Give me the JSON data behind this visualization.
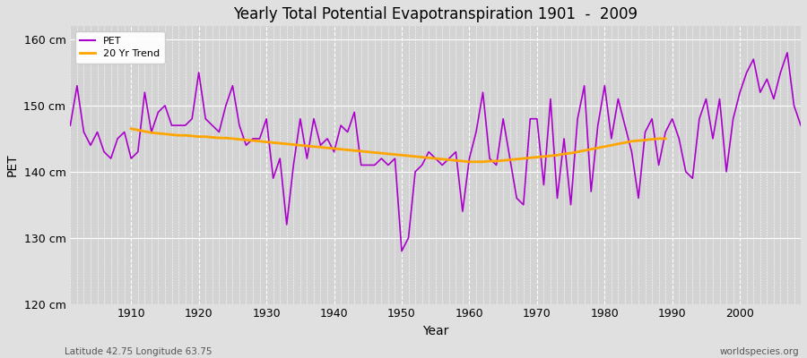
{
  "title": "Yearly Total Potential Evapotranspiration 1901  -  2009",
  "xlabel": "Year",
  "ylabel": "PET",
  "footer_left": "Latitude 42.75 Longitude 63.75",
  "footer_right": "worldspecies.org",
  "ylim": [
    120,
    162
  ],
  "yticks": [
    120,
    130,
    140,
    150,
    160
  ],
  "ytick_labels": [
    "120 cm",
    "130 cm",
    "140 cm",
    "150 cm",
    "160 cm"
  ],
  "pet_color": "#AA00CC",
  "trend_color": "#FFA500",
  "bg_color": "#E0E0E0",
  "plot_bg_color": "#D3D3D3",
  "grid_color": "#FFFFFF",
  "years": [
    1901,
    1902,
    1903,
    1904,
    1905,
    1906,
    1907,
    1908,
    1909,
    1910,
    1911,
    1912,
    1913,
    1914,
    1915,
    1916,
    1917,
    1918,
    1919,
    1920,
    1921,
    1922,
    1923,
    1924,
    1925,
    1926,
    1927,
    1928,
    1929,
    1930,
    1931,
    1932,
    1933,
    1934,
    1935,
    1936,
    1937,
    1938,
    1939,
    1940,
    1941,
    1942,
    1943,
    1944,
    1945,
    1946,
    1947,
    1948,
    1949,
    1950,
    1951,
    1952,
    1953,
    1954,
    1955,
    1956,
    1957,
    1958,
    1959,
    1960,
    1961,
    1962,
    1963,
    1964,
    1965,
    1966,
    1967,
    1968,
    1969,
    1970,
    1971,
    1972,
    1973,
    1974,
    1975,
    1976,
    1977,
    1978,
    1979,
    1980,
    1981,
    1982,
    1983,
    1984,
    1985,
    1986,
    1987,
    1988,
    1989,
    1990,
    1991,
    1992,
    1993,
    1994,
    1995,
    1996,
    1997,
    1998,
    1999,
    2000,
    2001,
    2002,
    2003,
    2004,
    2005,
    2006,
    2007,
    2008,
    2009
  ],
  "pet_values": [
    147,
    153,
    146,
    144,
    146,
    143,
    142,
    145,
    146,
    142,
    143,
    152,
    146,
    149,
    150,
    147,
    147,
    147,
    148,
    155,
    148,
    147,
    146,
    150,
    153,
    147,
    144,
    145,
    145,
    148,
    139,
    142,
    132,
    141,
    148,
    142,
    148,
    144,
    145,
    143,
    147,
    146,
    149,
    141,
    141,
    141,
    142,
    141,
    142,
    128,
    130,
    140,
    141,
    143,
    142,
    141,
    142,
    143,
    134,
    142,
    146,
    152,
    142,
    141,
    148,
    142,
    136,
    135,
    148,
    148,
    138,
    151,
    136,
    145,
    135,
    148,
    153,
    137,
    147,
    153,
    145,
    151,
    147,
    143,
    136,
    146,
    148,
    141,
    146,
    148,
    145,
    140,
    139,
    148,
    151,
    145,
    151,
    140,
    148,
    152,
    155,
    157,
    152,
    154,
    151,
    155,
    158,
    150,
    147
  ],
  "trend_start_year": 1910,
  "trend_end_year": 1989,
  "trend_values_y": [
    146.5,
    146.3,
    146.1,
    145.9,
    145.8,
    145.7,
    145.6,
    145.5,
    145.5,
    145.4,
    145.3,
    145.3,
    145.2,
    145.1,
    145.1,
    145.0,
    144.9,
    144.8,
    144.7,
    144.6,
    144.5,
    144.4,
    144.3,
    144.2,
    144.1,
    144.0,
    143.9,
    143.8,
    143.7,
    143.6,
    143.5,
    143.4,
    143.3,
    143.2,
    143.1,
    143.0,
    142.9,
    142.8,
    142.7,
    142.6,
    142.5,
    142.4,
    142.3,
    142.2,
    142.1,
    142.0,
    141.9,
    141.8,
    141.7,
    141.6,
    141.5,
    141.5,
    141.5,
    141.6,
    141.6,
    141.7,
    141.8,
    141.9,
    142.0,
    142.1,
    142.2,
    142.3,
    142.4,
    142.5,
    142.7,
    142.8,
    143.0,
    143.2,
    143.4,
    143.6,
    143.8,
    144.0,
    144.2,
    144.4,
    144.6,
    144.7,
    144.8,
    144.9,
    145.0,
    145.0
  ],
  "xlim": [
    1901,
    2009
  ],
  "xticks": [
    1910,
    1920,
    1930,
    1940,
    1950,
    1960,
    1970,
    1980,
    1990,
    2000
  ]
}
